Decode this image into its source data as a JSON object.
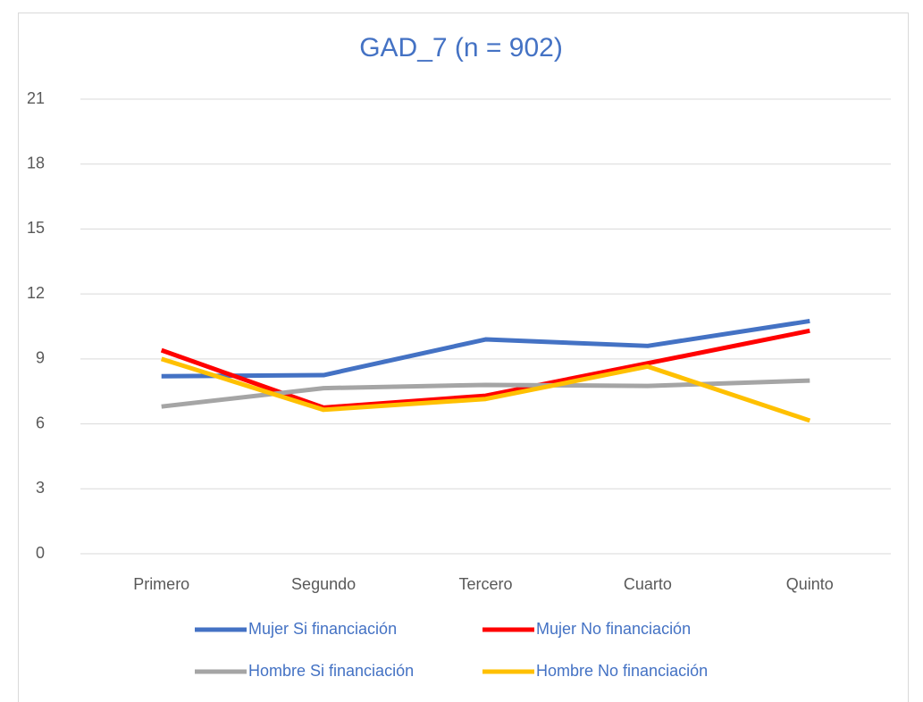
{
  "chart_data": {
    "type": "line",
    "title": "GAD_7 (n = 902)",
    "categories": [
      "Primero",
      "Segundo",
      "Tercero",
      "Cuarto",
      "Quinto"
    ],
    "series": [
      {
        "name": "Mujer Si financiación",
        "color": "#4472c4",
        "values": [
          8.2,
          8.25,
          9.9,
          9.6,
          10.75
        ]
      },
      {
        "name": "Mujer No financiación",
        "color": "#ff0000",
        "values": [
          9.4,
          6.75,
          7.3,
          8.8,
          10.3
        ]
      },
      {
        "name": "Hombre Si financiación",
        "color": "#a5a5a5",
        "values": [
          6.8,
          7.65,
          7.8,
          7.75,
          8.0
        ]
      },
      {
        "name": "Hombre No financiación",
        "color": "#ffc000",
        "values": [
          9.0,
          6.65,
          7.15,
          8.65,
          6.15
        ]
      }
    ],
    "ylim": [
      0,
      21
    ],
    "yticks": [
      0,
      3,
      6,
      9,
      12,
      15,
      18,
      21
    ],
    "grid": true,
    "legend": "bottom"
  }
}
